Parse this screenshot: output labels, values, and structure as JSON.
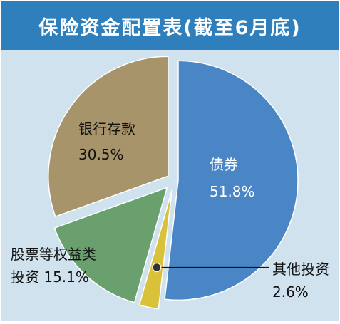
{
  "title": "保险资金配置表(截至6月底)",
  "colors": {
    "title_bg": "#2f7fbd",
    "panel_bg": "#cfe2ee"
  },
  "chart_data": {
    "type": "pie",
    "title": "保险资金配置表(截至6月底)",
    "unit": "%",
    "slices": [
      {
        "name": "债券",
        "value": 51.8,
        "value_label": "51.8%",
        "color": "#4a86c5",
        "text_color": "#ffffff"
      },
      {
        "name": "其他投资",
        "value": 2.6,
        "value_label": "2.6%",
        "color": "#d9c23a",
        "text_color": "#111111"
      },
      {
        "name": "股票等权益类投资",
        "value": 15.1,
        "value_label": "15.1%",
        "color": "#6aa06d",
        "text_color": "#111111"
      },
      {
        "name": "银行存款",
        "value": 30.5,
        "value_label": "30.5%",
        "color": "#a8946a",
        "text_color": "#111111"
      }
    ],
    "labels": [
      {
        "lines": [
          "债券",
          "51.8%"
        ]
      },
      {
        "lines": [
          "其他投资",
          "2.6%"
        ]
      },
      {
        "lines": [
          "股票等权益类",
          "投资 15.1%"
        ]
      },
      {
        "lines": [
          "银行存款",
          "30.5%"
        ]
      }
    ],
    "start_angle": "12 o'clock",
    "direction": "clockwise",
    "exploded": true
  }
}
